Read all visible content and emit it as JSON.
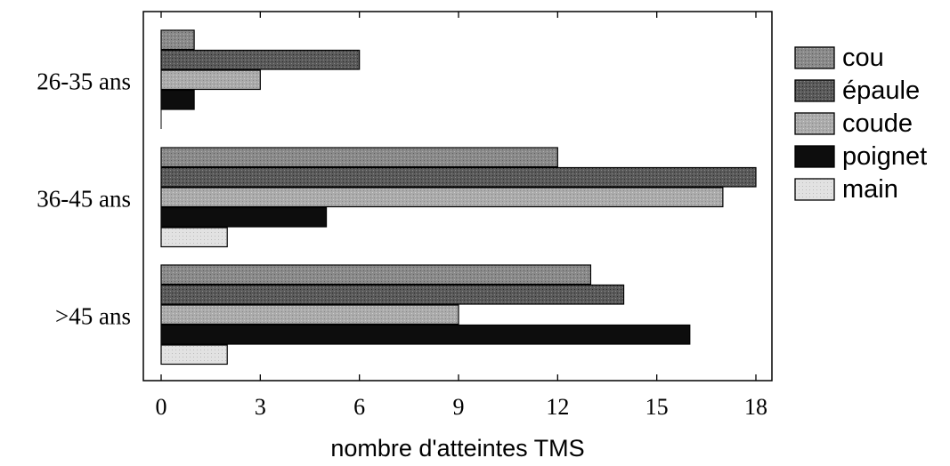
{
  "chart_data": {
    "type": "bar",
    "orientation": "horizontal",
    "categories": [
      "26-35 ans",
      "36-45 ans",
      ">45 ans"
    ],
    "series": [
      {
        "name": "cou",
        "values": [
          1,
          12,
          13
        ],
        "color": "#8a8a8a"
      },
      {
        "name": "épaule",
        "values": [
          6,
          18,
          14
        ],
        "color": "#555555"
      },
      {
        "name": "coude",
        "values": [
          3,
          17,
          9
        ],
        "color": "#a8a8a8"
      },
      {
        "name": "poignet",
        "values": [
          1,
          5,
          16
        ],
        "color": "#0d0d0d"
      },
      {
        "name": "main",
        "values": [
          0,
          2,
          2
        ],
        "color": "#dcdcdc"
      }
    ],
    "xlabel": "nombre d'atteintes TMS",
    "ylabel": "",
    "xlim": [
      0,
      18
    ],
    "xticks": [
      0,
      3,
      6,
      9,
      12,
      15,
      18
    ],
    "grid": false,
    "legend_position": "right"
  }
}
